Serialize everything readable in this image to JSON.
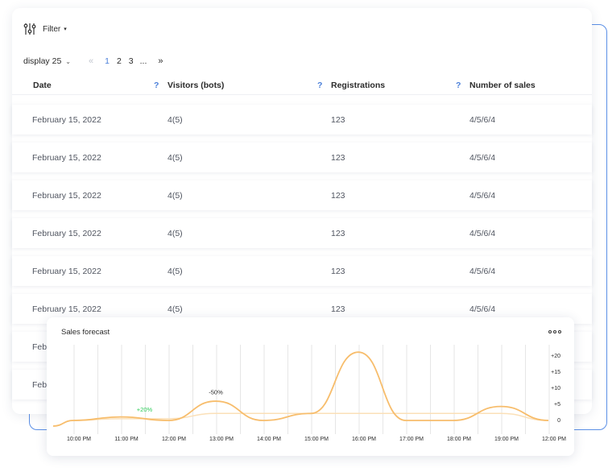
{
  "filter": {
    "label": "Filter",
    "icon": "sliders-icon"
  },
  "pagination": {
    "display_label": "display 25",
    "first_symbol": "«",
    "pages": [
      "1",
      "2",
      "3"
    ],
    "current_page": "1",
    "ellipsis": "...",
    "last_symbol": "»"
  },
  "table": {
    "headers": [
      "Date",
      "Visitors (bots)",
      "Registrations",
      "Number of sales"
    ],
    "help_symbol": "?",
    "rows": [
      [
        "February 15, 2022",
        "4(5)",
        "123",
        "4/5/6/4"
      ],
      [
        "February 15, 2022",
        "4(5)",
        "123",
        "4/5/6/4"
      ],
      [
        "February 15, 2022",
        "4(5)",
        "123",
        "4/5/6/4"
      ],
      [
        "February 15, 2022",
        "4(5)",
        "123",
        "4/5/6/4"
      ],
      [
        "February 15, 2022",
        "4(5)",
        "123",
        "4/5/6/4"
      ],
      [
        "February 15, 2022",
        "4(5)",
        "123",
        "4/5/6/4"
      ],
      [
        "Febr",
        "",
        "",
        ""
      ],
      [
        "Febr",
        "",
        "",
        ""
      ]
    ]
  },
  "forecast": {
    "title": "Sales forecast",
    "menu_icon": "more-dots-icon"
  },
  "colors": {
    "accent": "#4a7fd9",
    "frame": "#5b8fe6",
    "line_main": "#f7bd6c",
    "line_secondary": "#fbe0b8",
    "positive": "#2ecc5a"
  },
  "chart_data": {
    "type": "line",
    "title": "Sales forecast",
    "x": [
      "10:00 PM",
      "11:00 PM",
      "12:00 PM",
      "13:00 PM",
      "14:00 PM",
      "15:00 PM",
      "16:00 PM",
      "17:00 PM",
      "18:00 PM",
      "19:00 PM",
      "12:00 PM"
    ],
    "y_ticks": [
      "+20",
      "+15",
      "+10",
      "+5",
      "0"
    ],
    "ylim": [
      0,
      20
    ],
    "grid": true,
    "series": [
      {
        "values": [
          0,
          1,
          0,
          5.5,
          0,
          2,
          19.5,
          0,
          0,
          4,
          0
        ]
      },
      {
        "values": [
          0,
          0.5,
          0.5,
          2,
          2,
          2,
          2,
          2,
          2,
          2,
          0
        ]
      }
    ],
    "annotations": [
      {
        "text": "+20%",
        "x_index": 1.5,
        "y": 2.5,
        "color": "#2ecc5a"
      },
      {
        "text": "-50%",
        "x_index": 3,
        "y": 7.5,
        "color": "#2b2b2b"
      }
    ]
  }
}
